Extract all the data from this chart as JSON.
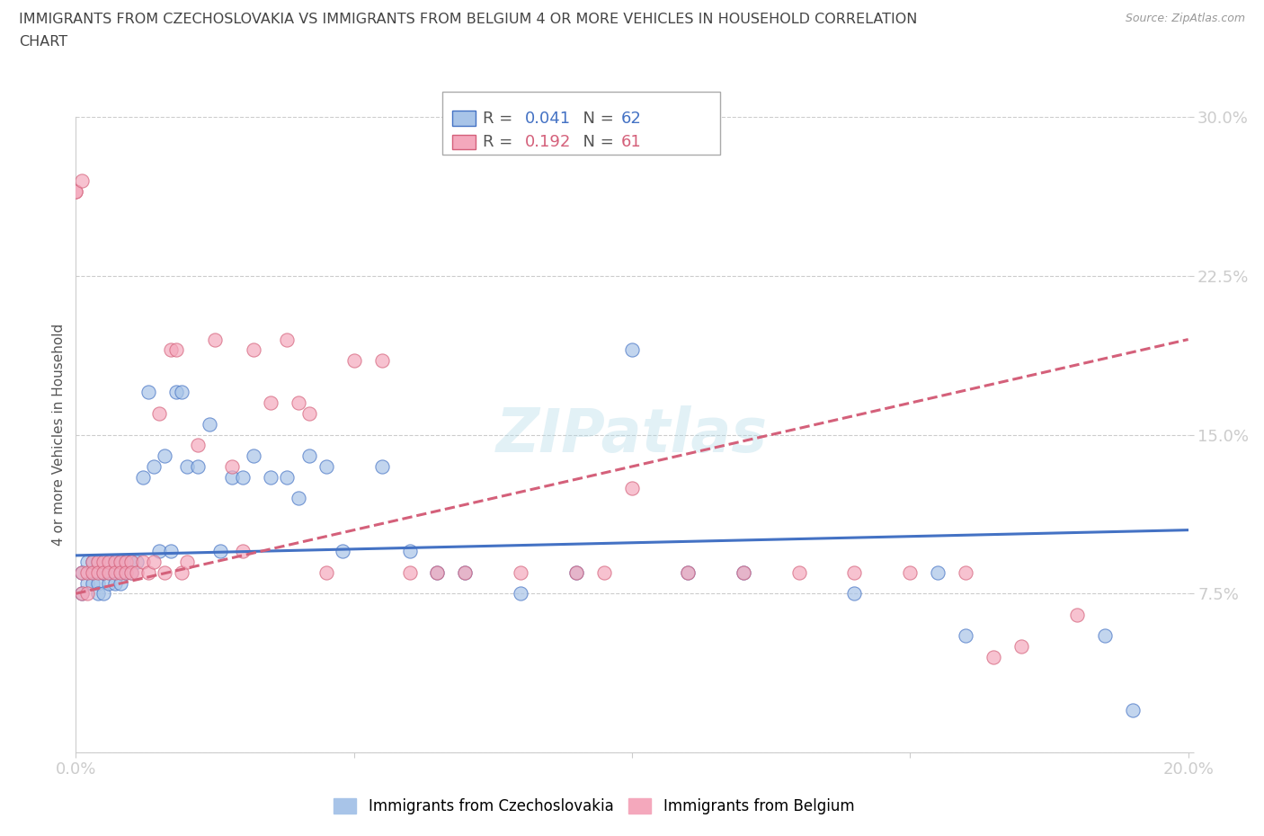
{
  "title_line1": "IMMIGRANTS FROM CZECHOSLOVAKIA VS IMMIGRANTS FROM BELGIUM 4 OR MORE VEHICLES IN HOUSEHOLD CORRELATION",
  "title_line2": "CHART",
  "source": "Source: ZipAtlas.com",
  "ylabel": "4 or more Vehicles in Household",
  "xlim": [
    0.0,
    0.2
  ],
  "ylim": [
    0.0,
    0.3
  ],
  "color_czecho": "#a8c4e8",
  "color_belgium": "#f4a8bc",
  "trendline_czecho_color": "#4472c4",
  "trendline_belgium_color": "#d4607a",
  "trendline_czecho_style": "-",
  "trendline_belgium_style": "--",
  "czecho_R": 0.041,
  "czecho_N": 62,
  "belgium_R": 0.192,
  "belgium_N": 61,
  "czecho_trend_x0": 0.0,
  "czecho_trend_y0": 0.093,
  "czecho_trend_x1": 0.2,
  "czecho_trend_y1": 0.105,
  "belgium_trend_x0": 0.0,
  "belgium_trend_y0": 0.075,
  "belgium_trend_x1": 0.2,
  "belgium_trend_y1": 0.195,
  "czecho_x": [
    0.001,
    0.001,
    0.002,
    0.002,
    0.003,
    0.003,
    0.003,
    0.004,
    0.004,
    0.004,
    0.005,
    0.005,
    0.005,
    0.006,
    0.006,
    0.006,
    0.007,
    0.007,
    0.007,
    0.008,
    0.008,
    0.008,
    0.009,
    0.009,
    0.01,
    0.01,
    0.011,
    0.012,
    0.013,
    0.014,
    0.015,
    0.016,
    0.017,
    0.018,
    0.019,
    0.02,
    0.022,
    0.024,
    0.026,
    0.028,
    0.03,
    0.032,
    0.035,
    0.038,
    0.04,
    0.042,
    0.045,
    0.048,
    0.055,
    0.06,
    0.065,
    0.07,
    0.08,
    0.09,
    0.1,
    0.11,
    0.12,
    0.14,
    0.155,
    0.16,
    0.185,
    0.19
  ],
  "czecho_y": [
    0.085,
    0.075,
    0.09,
    0.08,
    0.09,
    0.085,
    0.08,
    0.09,
    0.08,
    0.075,
    0.085,
    0.085,
    0.075,
    0.09,
    0.085,
    0.08,
    0.09,
    0.085,
    0.08,
    0.09,
    0.085,
    0.08,
    0.09,
    0.085,
    0.09,
    0.085,
    0.09,
    0.13,
    0.17,
    0.135,
    0.095,
    0.14,
    0.095,
    0.17,
    0.17,
    0.135,
    0.135,
    0.155,
    0.095,
    0.13,
    0.13,
    0.14,
    0.13,
    0.13,
    0.12,
    0.14,
    0.135,
    0.095,
    0.135,
    0.095,
    0.085,
    0.085,
    0.075,
    0.085,
    0.19,
    0.085,
    0.085,
    0.075,
    0.085,
    0.055,
    0.055,
    0.02
  ],
  "belgium_x": [
    0.001,
    0.001,
    0.002,
    0.002,
    0.003,
    0.003,
    0.004,
    0.004,
    0.005,
    0.005,
    0.006,
    0.006,
    0.007,
    0.007,
    0.008,
    0.008,
    0.009,
    0.009,
    0.01,
    0.01,
    0.011,
    0.012,
    0.013,
    0.014,
    0.015,
    0.016,
    0.017,
    0.018,
    0.019,
    0.02,
    0.022,
    0.025,
    0.028,
    0.03,
    0.032,
    0.035,
    0.038,
    0.04,
    0.042,
    0.045,
    0.05,
    0.055,
    0.06,
    0.065,
    0.07,
    0.08,
    0.09,
    0.095,
    0.1,
    0.11,
    0.12,
    0.13,
    0.14,
    0.15,
    0.16,
    0.165,
    0.17,
    0.18,
    0.0,
    0.0,
    0.001
  ],
  "belgium_y": [
    0.085,
    0.075,
    0.085,
    0.075,
    0.09,
    0.085,
    0.09,
    0.085,
    0.09,
    0.085,
    0.09,
    0.085,
    0.09,
    0.085,
    0.09,
    0.085,
    0.09,
    0.085,
    0.09,
    0.085,
    0.085,
    0.09,
    0.085,
    0.09,
    0.16,
    0.085,
    0.19,
    0.19,
    0.085,
    0.09,
    0.145,
    0.195,
    0.135,
    0.095,
    0.19,
    0.165,
    0.195,
    0.165,
    0.16,
    0.085,
    0.185,
    0.185,
    0.085,
    0.085,
    0.085,
    0.085,
    0.085,
    0.085,
    0.125,
    0.085,
    0.085,
    0.085,
    0.085,
    0.085,
    0.085,
    0.045,
    0.05,
    0.065,
    0.265,
    0.265,
    0.27
  ]
}
